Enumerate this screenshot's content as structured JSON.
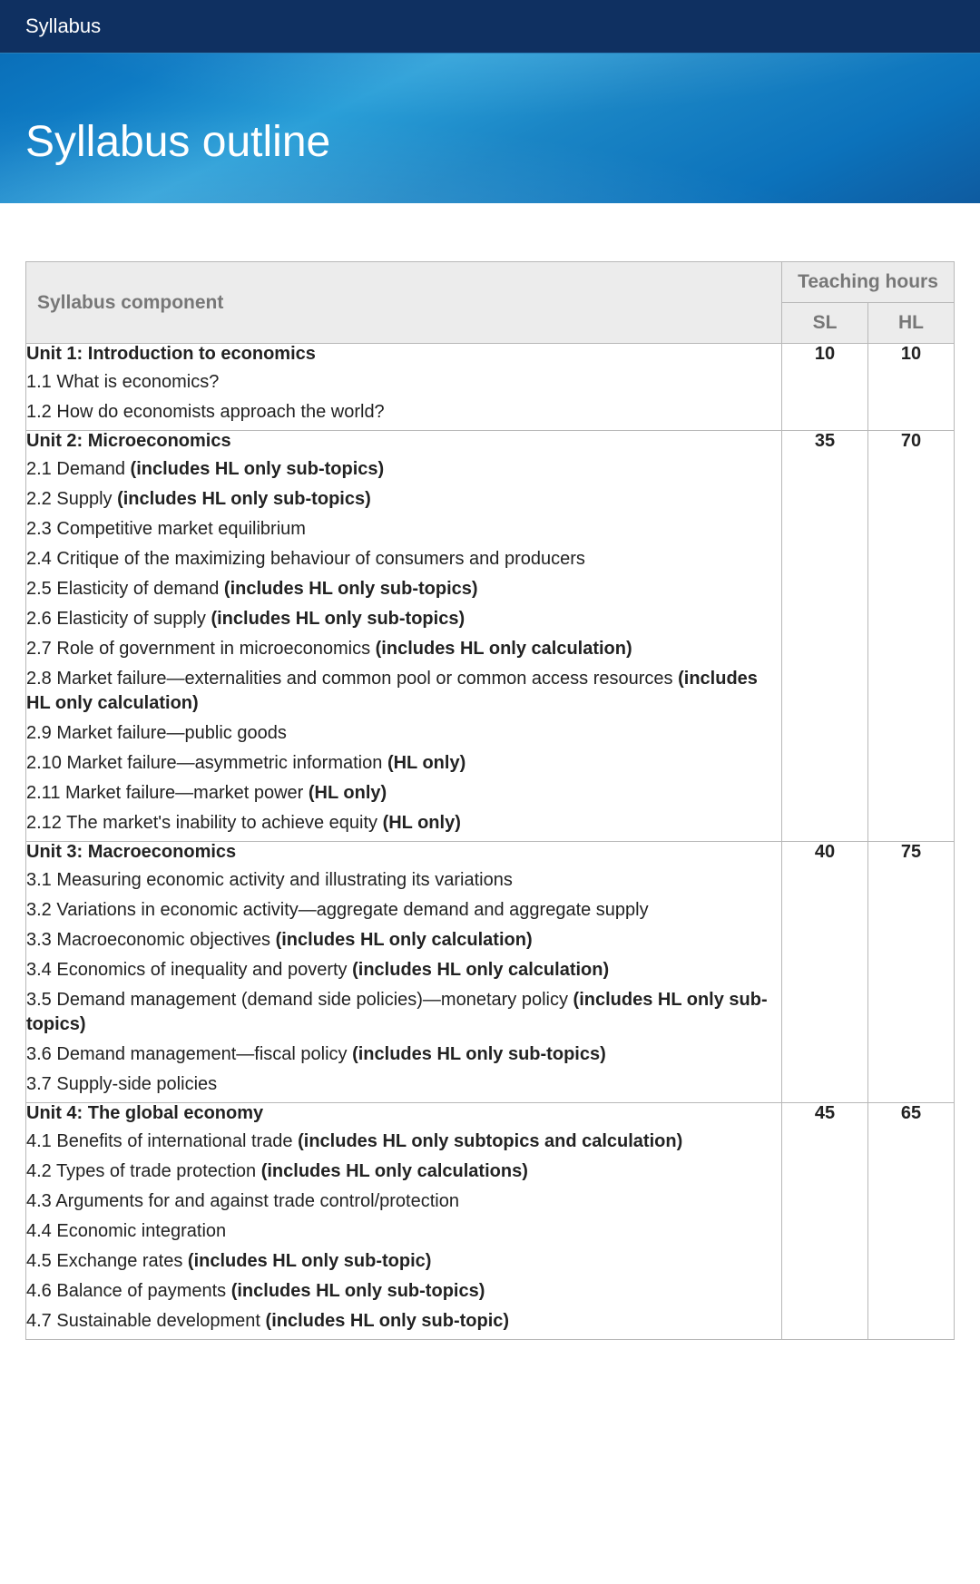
{
  "header": {
    "breadcrumb": "Syllabus",
    "title": "Syllabus outline"
  },
  "table": {
    "col_component": "Syllabus component",
    "col_hours": "Teaching hours",
    "col_sl": "SL",
    "col_hl": "HL"
  },
  "units": [
    {
      "title": "Unit 1: Introduction to economics",
      "sl": "10",
      "hl": "10",
      "topics": [
        {
          "num": "1.1",
          "text": "What is economics?",
          "note": ""
        },
        {
          "num": "1.2",
          "text": "How do economists approach the world?",
          "note": ""
        }
      ]
    },
    {
      "title": "Unit 2: Microeconomics",
      "sl": "35",
      "hl": "70",
      "topics": [
        {
          "num": "2.1",
          "text": "Demand",
          "note": "(includes HL only sub-topics)"
        },
        {
          "num": "2.2",
          "text": "Supply",
          "note": "(includes HL only sub-topics)"
        },
        {
          "num": "2.3",
          "text": "Competitive market equilibrium",
          "note": ""
        },
        {
          "num": "2.4",
          "text": "Critique of the maximizing behaviour of consumers and producers",
          "note": ""
        },
        {
          "num": "2.5",
          "text": "Elasticity of demand",
          "note": "(includes HL only sub-topics)"
        },
        {
          "num": "2.6",
          "text": "Elasticity of supply",
          "note": "(includes HL only sub-topics)"
        },
        {
          "num": "2.7",
          "text": "Role of government in microeconomics",
          "note": "(includes HL only calculation)"
        },
        {
          "num": "2.8",
          "text": "Market failure—externalities and common pool or common access resources",
          "note": "(includes HL only calculation)"
        },
        {
          "num": "2.9",
          "text": "Market failure—public goods",
          "note": ""
        },
        {
          "num": "2.10",
          "text": "Market failure—asymmetric information",
          "note": "(HL only)"
        },
        {
          "num": "2.11",
          "text": "Market failure—market power",
          "note": "(HL only)"
        },
        {
          "num": "2.12",
          "text": "The market's inability to achieve equity",
          "note": "(HL only)"
        }
      ]
    },
    {
      "title": "Unit 3: Macroeconomics",
      "sl": "40",
      "hl": "75",
      "topics": [
        {
          "num": "3.1",
          "text": "Measuring economic activity and illustrating its variations",
          "note": ""
        },
        {
          "num": "3.2",
          "text": "Variations in economic activity—aggregate demand and aggregate supply",
          "note": ""
        },
        {
          "num": "3.3",
          "text": "Macroeconomic objectives",
          "note": "(includes HL only calculation)"
        },
        {
          "num": "3.4",
          "text": "Economics of inequality and poverty",
          "note": "(includes HL only calculation)"
        },
        {
          "num": "3.5",
          "text": "Demand management (demand side policies)—monetary policy",
          "note": "(includes HL only sub-topics)"
        },
        {
          "num": "3.6",
          "text": "Demand management—fiscal policy",
          "note": "(includes HL only sub-topics)"
        },
        {
          "num": "3.7",
          "text": "Supply-side policies",
          "note": ""
        }
      ]
    },
    {
      "title": "Unit 4: The global economy",
      "sl": "45",
      "hl": "65",
      "topics": [
        {
          "num": "4.1",
          "text": "Benefits of international trade",
          "note": "(includes HL only subtopics and calculation)"
        },
        {
          "num": "4.2",
          "text": "Types of trade protection",
          "note": "(includes HL only calculations)"
        },
        {
          "num": "4.3",
          "text": "Arguments for and against trade control/protection",
          "note": ""
        },
        {
          "num": "4.4",
          "text": "Economic integration",
          "note": ""
        },
        {
          "num": "4.5",
          "text": "Exchange rates",
          "note": "(includes HL only sub-topic)"
        },
        {
          "num": "4.6",
          "text": "Balance of payments",
          "note": "(includes HL only sub-topics)"
        },
        {
          "num": "4.7",
          "text": "Sustainable development",
          "note": "(includes HL only sub-topic)"
        }
      ]
    }
  ]
}
